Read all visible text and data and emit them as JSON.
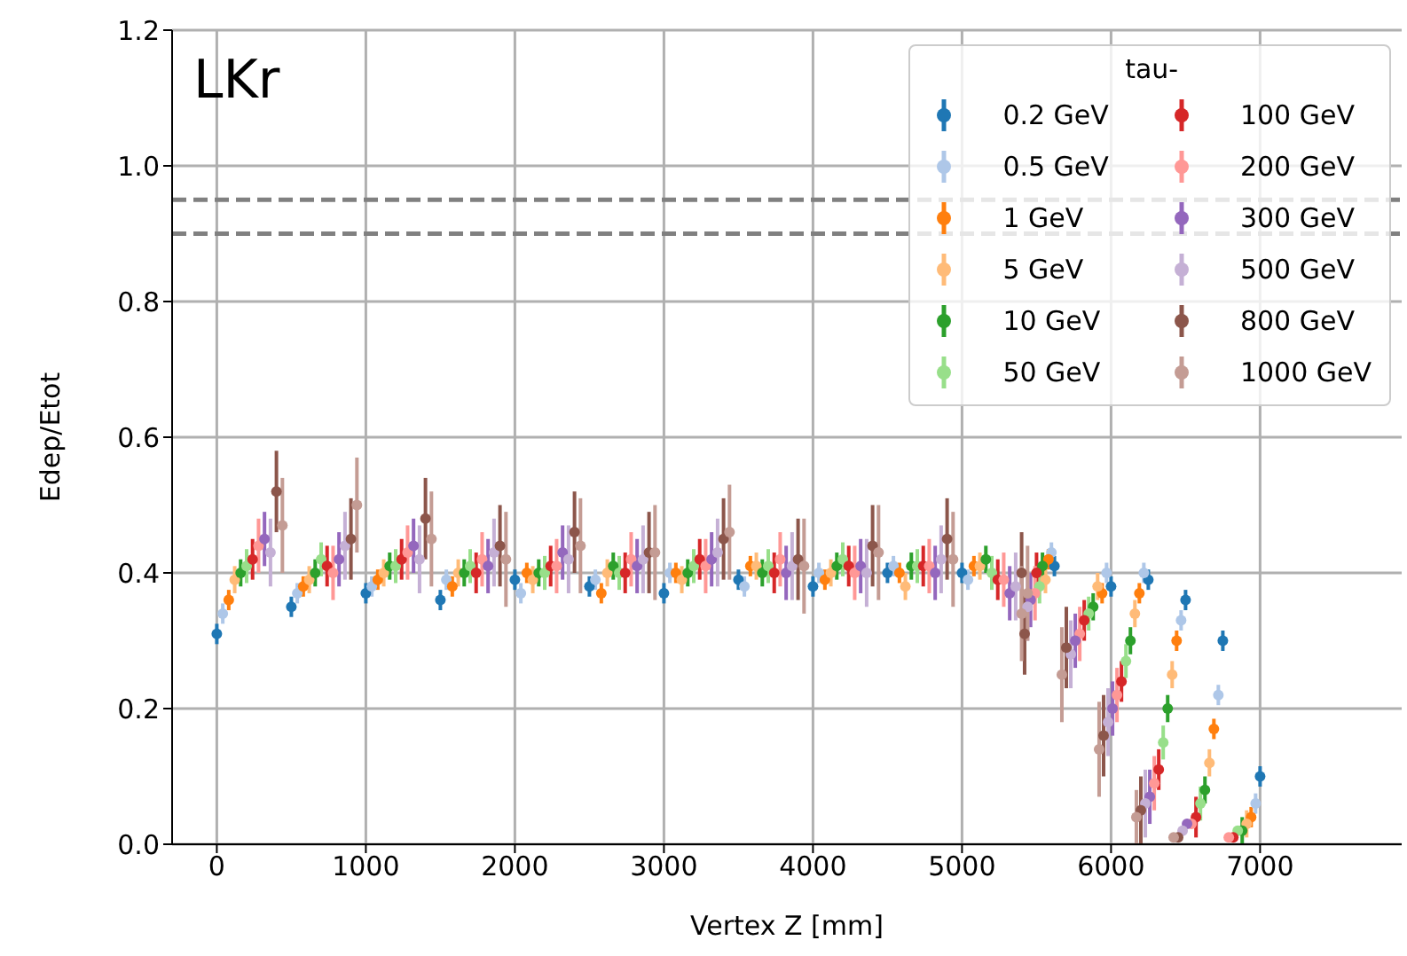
{
  "chart_data": {
    "type": "scatter",
    "xlabel": "Vertex Z [mm]",
    "ylabel": "Edep/Etot",
    "legend_title": "tau-",
    "annotations": [
      "LKr"
    ],
    "series": [
      {
        "name": "0.2 GeV",
        "color": "#1f77b4",
        "x": [
          0,
          500,
          1000,
          1500,
          2000,
          2500,
          3000,
          3500,
          4000,
          4500,
          5000,
          5620,
          6000,
          6250,
          6500,
          6750,
          7000
        ],
        "values": [
          0.31,
          0.35,
          0.37,
          0.36,
          0.39,
          0.38,
          0.37,
          0.39,
          0.38,
          0.4,
          0.4,
          0.41,
          0.38,
          0.39,
          0.36,
          0.3,
          0.1
        ],
        "errors": [
          0.015,
          0.015,
          0.015,
          0.015,
          0.015,
          0.015,
          0.015,
          0.015,
          0.015,
          0.015,
          0.015,
          0.015,
          0.015,
          0.015,
          0.015,
          0.015,
          0.015
        ]
      },
      {
        "name": "0.5 GeV",
        "color": "#aec7e8",
        "x": [
          40,
          540,
          1040,
          1540,
          2040,
          2540,
          3040,
          3540,
          4040,
          4540,
          5040,
          5600,
          5970,
          6220,
          6470,
          6720,
          6970
        ],
        "values": [
          0.34,
          0.37,
          0.38,
          0.39,
          0.37,
          0.39,
          0.4,
          0.38,
          0.4,
          0.41,
          0.39,
          0.43,
          0.4,
          0.4,
          0.33,
          0.22,
          0.06
        ],
        "errors": [
          0.015,
          0.015,
          0.015,
          0.015,
          0.015,
          0.015,
          0.015,
          0.015,
          0.015,
          0.015,
          0.015,
          0.015,
          0.015,
          0.015,
          0.015,
          0.015,
          0.015
        ]
      },
      {
        "name": "1 GeV",
        "color": "#ff7f0e",
        "x": [
          80,
          580,
          1080,
          1580,
          2080,
          2580,
          3080,
          3580,
          4080,
          4580,
          5080,
          5580,
          5940,
          6190,
          6440,
          6690,
          6940
        ],
        "values": [
          0.36,
          0.38,
          0.39,
          0.38,
          0.4,
          0.37,
          0.4,
          0.41,
          0.39,
          0.4,
          0.41,
          0.42,
          0.37,
          0.37,
          0.3,
          0.17,
          0.04
        ],
        "errors": [
          0.015,
          0.015,
          0.015,
          0.015,
          0.015,
          0.015,
          0.015,
          0.015,
          0.015,
          0.015,
          0.015,
          0.015,
          0.015,
          0.015,
          0.015,
          0.015,
          0.015
        ]
      },
      {
        "name": "5 GeV",
        "color": "#ffbb78",
        "x": [
          120,
          620,
          1120,
          1620,
          2120,
          2620,
          3120,
          3620,
          4120,
          4620,
          5120,
          5560,
          5910,
          6160,
          6410,
          6660,
          6910
        ],
        "values": [
          0.39,
          0.39,
          0.4,
          0.4,
          0.39,
          0.4,
          0.39,
          0.41,
          0.4,
          0.38,
          0.41,
          0.39,
          0.38,
          0.34,
          0.25,
          0.12,
          0.03
        ],
        "errors": [
          0.02,
          0.02,
          0.02,
          0.02,
          0.02,
          0.02,
          0.02,
          0.02,
          0.02,
          0.02,
          0.02,
          0.02,
          0.02,
          0.02,
          0.02,
          0.02,
          0.02
        ]
      },
      {
        "name": "10 GeV",
        "color": "#2ca02c",
        "x": [
          160,
          660,
          1160,
          1660,
          2160,
          2660,
          3160,
          3660,
          4160,
          4660,
          5160,
          5540,
          5880,
          6130,
          6380,
          6630,
          6880
        ],
        "values": [
          0.4,
          0.4,
          0.41,
          0.4,
          0.4,
          0.41,
          0.4,
          0.4,
          0.41,
          0.41,
          0.42,
          0.41,
          0.35,
          0.3,
          0.2,
          0.08,
          0.02
        ],
        "errors": [
          0.02,
          0.02,
          0.02,
          0.02,
          0.02,
          0.02,
          0.02,
          0.02,
          0.02,
          0.02,
          0.02,
          0.02,
          0.02,
          0.02,
          0.02,
          0.02,
          0.02
        ]
      },
      {
        "name": "50 GeV",
        "color": "#98df8a",
        "x": [
          200,
          700,
          1200,
          1700,
          2200,
          2700,
          3200,
          3700,
          4200,
          4700,
          5200,
          5520,
          5850,
          6100,
          6350,
          6600,
          6850
        ],
        "values": [
          0.41,
          0.42,
          0.41,
          0.41,
          0.4,
          0.4,
          0.41,
          0.41,
          0.42,
          0.41,
          0.4,
          0.38,
          0.34,
          0.27,
          0.15,
          0.06,
          0.02
        ],
        "errors": [
          0.025,
          0.025,
          0.025,
          0.025,
          0.025,
          0.025,
          0.025,
          0.025,
          0.025,
          0.025,
          0.025,
          0.025,
          0.025,
          0.025,
          0.025,
          0.025,
          null
        ]
      },
      {
        "name": "100 GeV",
        "color": "#d62728",
        "x": [
          240,
          740,
          1240,
          1740,
          2240,
          2740,
          3240,
          3740,
          4240,
          4740,
          5240,
          5500,
          5820,
          6070,
          6320,
          6570,
          6820
        ],
        "values": [
          0.42,
          0.41,
          0.42,
          0.4,
          0.41,
          0.4,
          0.42,
          0.4,
          0.41,
          0.41,
          0.39,
          0.4,
          0.33,
          0.24,
          0.11,
          0.04,
          0.01
        ],
        "errors": [
          0.03,
          0.03,
          0.03,
          0.03,
          0.03,
          0.03,
          0.03,
          0.03,
          0.03,
          0.03,
          0.03,
          0.03,
          0.03,
          0.03,
          0.03,
          0.03,
          null
        ]
      },
      {
        "name": "200 GeV",
        "color": "#ff9896",
        "x": [
          280,
          780,
          1280,
          1780,
          2280,
          2780,
          3280,
          3780,
          4280,
          4780,
          5280,
          5490,
          5790,
          6040,
          6290,
          6540,
          6790
        ],
        "values": [
          0.44,
          0.4,
          0.43,
          0.42,
          0.41,
          0.42,
          0.41,
          0.42,
          0.4,
          0.41,
          0.39,
          0.37,
          0.31,
          0.22,
          0.09,
          0.03,
          0.01
        ],
        "errors": [
          0.04,
          0.04,
          0.04,
          0.04,
          0.04,
          0.04,
          0.04,
          0.04,
          0.04,
          0.04,
          0.04,
          0.04,
          0.04,
          0.04,
          0.04,
          null,
          null
        ]
      },
      {
        "name": "300 GeV",
        "color": "#9467bd",
        "x": [
          320,
          820,
          1320,
          1820,
          2320,
          2820,
          3320,
          3820,
          4320,
          4820,
          5320,
          5460,
          5760,
          6010,
          6260,
          6510,
          null
        ],
        "values": [
          0.45,
          0.42,
          0.44,
          0.41,
          0.43,
          0.41,
          0.42,
          0.4,
          0.41,
          0.4,
          0.37,
          0.36,
          0.3,
          0.2,
          0.07,
          0.03,
          null
        ],
        "errors": [
          0.04,
          0.04,
          0.04,
          0.04,
          0.04,
          0.04,
          0.04,
          0.04,
          0.04,
          0.04,
          0.04,
          0.04,
          0.04,
          0.04,
          0.04,
          null,
          null
        ]
      },
      {
        "name": "500 GeV",
        "color": "#c5b0d5",
        "x": [
          360,
          860,
          1360,
          1860,
          2360,
          2860,
          3360,
          3860,
          4360,
          4860,
          5360,
          5440,
          5730,
          5980,
          6230,
          6480,
          null
        ],
        "values": [
          0.43,
          0.44,
          0.42,
          0.43,
          0.42,
          0.42,
          0.43,
          0.41,
          0.4,
          0.42,
          0.38,
          0.35,
          0.28,
          0.18,
          0.06,
          0.02,
          null
        ],
        "errors": [
          0.05,
          0.05,
          0.05,
          0.05,
          0.05,
          0.05,
          0.05,
          0.05,
          0.05,
          0.05,
          0.05,
          0.05,
          0.05,
          0.05,
          0.05,
          null,
          null
        ]
      },
      {
        "name": "800 GeV",
        "color": "#8c564b",
        "x": [
          400,
          900,
          1400,
          1900,
          2400,
          2900,
          3400,
          3900,
          4400,
          4900,
          5400,
          5420,
          5700,
          5950,
          6200,
          6450,
          null
        ],
        "values": [
          0.52,
          0.45,
          0.48,
          0.44,
          0.46,
          0.43,
          0.45,
          0.42,
          0.44,
          0.45,
          0.4,
          0.31,
          0.29,
          0.16,
          0.05,
          0.01,
          null
        ],
        "errors": [
          0.06,
          0.06,
          0.06,
          0.06,
          0.06,
          0.06,
          0.06,
          0.06,
          0.06,
          0.06,
          0.06,
          0.06,
          0.06,
          0.06,
          0.05,
          null,
          null
        ]
      },
      {
        "name": "1000 GeV",
        "color": "#c49c94",
        "x": [
          440,
          940,
          1440,
          1940,
          2440,
          2940,
          3440,
          3940,
          4440,
          4940,
          5440,
          5400,
          5670,
          5920,
          6170,
          6420,
          null
        ],
        "values": [
          0.47,
          0.5,
          0.45,
          0.42,
          0.44,
          0.43,
          0.46,
          0.41,
          0.43,
          0.42,
          0.37,
          0.34,
          0.25,
          0.14,
          0.04,
          0.01,
          null
        ],
        "errors": [
          0.07,
          0.07,
          0.07,
          0.07,
          0.07,
          0.07,
          0.07,
          0.07,
          0.07,
          0.07,
          0.07,
          0.07,
          0.07,
          0.07,
          0.04,
          null,
          null
        ]
      }
    ],
    "xlim": [
      -300,
      7950
    ],
    "xticks": [
      0,
      1000,
      2000,
      3000,
      4000,
      5000,
      6000,
      7000
    ],
    "ylim": [
      0,
      1.2
    ],
    "yticks": [
      {
        "value": 0,
        "label": "0.0"
      },
      {
        "value": 0.2,
        "label": "0.2"
      },
      {
        "value": 0.4,
        "label": "0.4"
      },
      {
        "value": 0.6,
        "label": "0.6"
      },
      {
        "value": 0.8,
        "label": "0.8"
      },
      {
        "value": 1.0,
        "label": "1.0"
      },
      {
        "value": 1.2,
        "label": "1.2"
      }
    ],
    "ref_lines": [
      {
        "axis": "y",
        "value": 0.95,
        "label": null,
        "color": "#808080",
        "line_style": "dashed"
      },
      {
        "axis": "y",
        "value": 0.9,
        "label": null,
        "color": "#808080",
        "line_style": "dashed"
      }
    ],
    "grid": true,
    "legend": "top right",
    "marker": "circle"
  }
}
